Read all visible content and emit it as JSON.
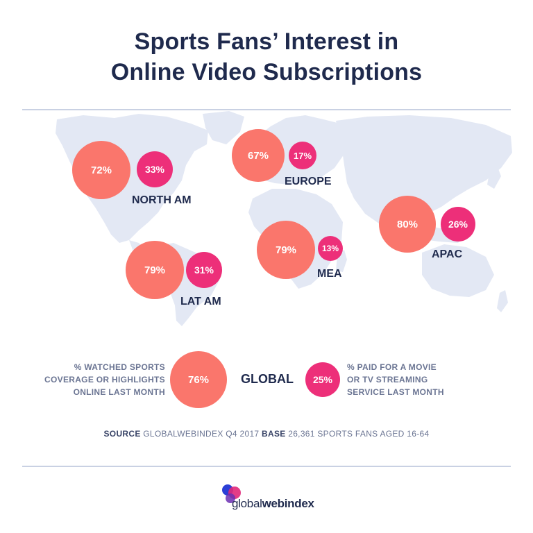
{
  "title": {
    "line1": "Sports Fans’ Interest in",
    "line2": "Online Video Subscriptions"
  },
  "colors": {
    "watched": "#fa766c",
    "paid": "#ed2f79",
    "map": "#e3e8f4",
    "text": "#1f2a4d"
  },
  "regions": {
    "north_am": {
      "label": "NORTH AM",
      "watched": "72%",
      "paid": "33%"
    },
    "europe": {
      "label": "EUROPE",
      "watched": "67%",
      "paid": "17%"
    },
    "apac": {
      "label": "APAC",
      "watched": "80%",
      "paid": "26%"
    },
    "mea": {
      "label": "MEA",
      "watched": "79%",
      "paid": "13%"
    },
    "lat_am": {
      "label": "LAT AM",
      "watched": "79%",
      "paid": "31%"
    }
  },
  "global": {
    "label": "GLOBAL",
    "watched": "76%",
    "paid": "25%"
  },
  "legend": {
    "watched_line1": "% WATCHED SPORTS",
    "watched_line2": "COVERAGE OR HIGHLIGHTS",
    "watched_line3": "ONLINE LAST MONTH",
    "paid_line1": "% PAID FOR A MOVIE",
    "paid_line2": "OR TV STREAMING",
    "paid_line3": "SERVICE LAST MONTH"
  },
  "source": {
    "source_label": "SOURCE",
    "source_text": "GLOBALWEBINDEX Q4 2017",
    "base_label": "BASE",
    "base_text": "26,361 SPORTS FANS AGED 16-64"
  },
  "logo": {
    "part1": "global",
    "part2": "webindex"
  }
}
